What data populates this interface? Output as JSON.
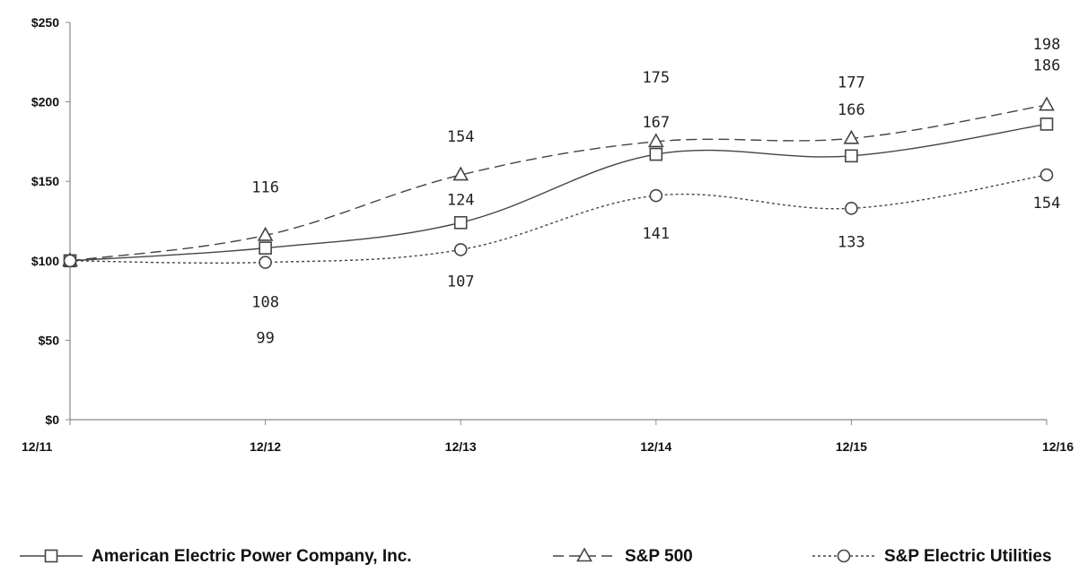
{
  "chart_data": {
    "type": "line",
    "title": "",
    "xlabel": "",
    "ylabel": "",
    "categories": [
      "12/11",
      "12/12",
      "12/13",
      "12/14",
      "12/15",
      "12/16"
    ],
    "y_ticks": [
      "$0",
      "$50",
      "$100",
      "$150",
      "$200",
      "$250"
    ],
    "ylim": [
      0,
      250
    ],
    "grid": false,
    "legend_position": "bottom",
    "series": [
      {
        "key": "aep",
        "name": "American Electric Power Company, Inc.",
        "values": [
          100,
          108,
          124,
          167,
          166,
          186
        ],
        "labels": [
          "",
          "108",
          "124",
          "167",
          "166",
          "186"
        ],
        "marker": "square",
        "line_style": "solid",
        "color": "#444444"
      },
      {
        "key": "sp500",
        "name": "S&P 500",
        "values": [
          100,
          116,
          154,
          175,
          177,
          198
        ],
        "labels": [
          "",
          "116",
          "154",
          "175",
          "177",
          "198"
        ],
        "marker": "triangle",
        "line_style": "dashed",
        "color": "#444444"
      },
      {
        "key": "utilities",
        "name": "S&P Electric Utilities",
        "values": [
          100,
          99,
          107,
          141,
          133,
          154
        ],
        "labels": [
          "",
          "99",
          "107",
          "141",
          "133",
          "154"
        ],
        "marker": "circle",
        "line_style": "dotted",
        "color": "#444444"
      }
    ]
  }
}
